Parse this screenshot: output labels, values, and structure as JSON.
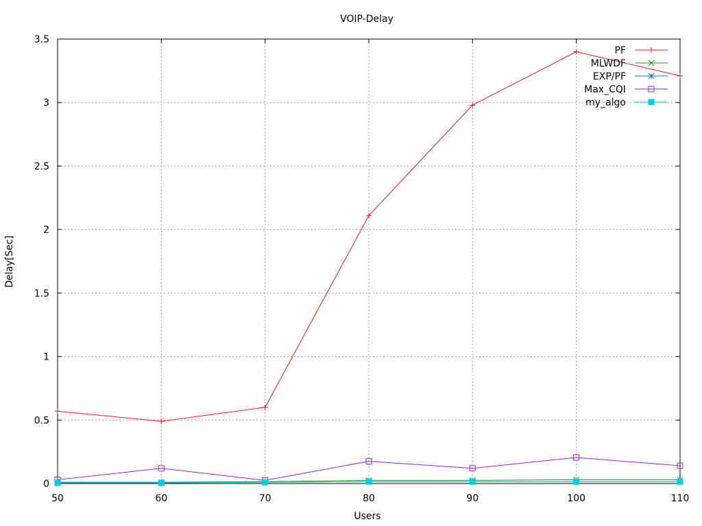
{
  "chart_data": {
    "type": "line",
    "title": "VOIP-Delay",
    "xlabel": "Users",
    "ylabel": "Delay[Sec]",
    "xlim": [
      50,
      110
    ],
    "ylim": [
      0,
      3.5
    ],
    "x": [
      50,
      60,
      70,
      80,
      90,
      100,
      110
    ],
    "xticks": [
      "50",
      "60",
      "70",
      "80",
      "90",
      "100",
      "110"
    ],
    "yticks": [
      "0",
      "0.5",
      "1",
      "1.5",
      "2",
      "2.5",
      "3",
      "3.5"
    ],
    "grid": true,
    "legend_position": "top-right",
    "series": [
      {
        "name": "PF",
        "color": "#e41a1c",
        "marker": "plus",
        "values": [
          0.57,
          0.49,
          0.6,
          2.11,
          2.98,
          3.4,
          3.21
        ]
      },
      {
        "name": "MLWDF",
        "color": "#1a9a1a",
        "marker": "x",
        "values": [
          0.01,
          0.01,
          0.015,
          0.025,
          0.025,
          0.03,
          0.03
        ]
      },
      {
        "name": "EXP/PF",
        "color": "#1f6fb4",
        "marker": "star",
        "values": [
          0.008,
          0.008,
          0.01,
          0.015,
          0.015,
          0.015,
          0.015
        ]
      },
      {
        "name": "Max_CQI",
        "color": "#9a20c8",
        "marker": "square",
        "values": [
          0.03,
          0.12,
          0.025,
          0.175,
          0.12,
          0.205,
          0.14
        ]
      },
      {
        "name": "my_algo",
        "color": "#00d0d8",
        "marker": "filled-square",
        "values": [
          0.005,
          0.005,
          0.01,
          0.015,
          0.015,
          0.015,
          0.015
        ]
      }
    ]
  }
}
